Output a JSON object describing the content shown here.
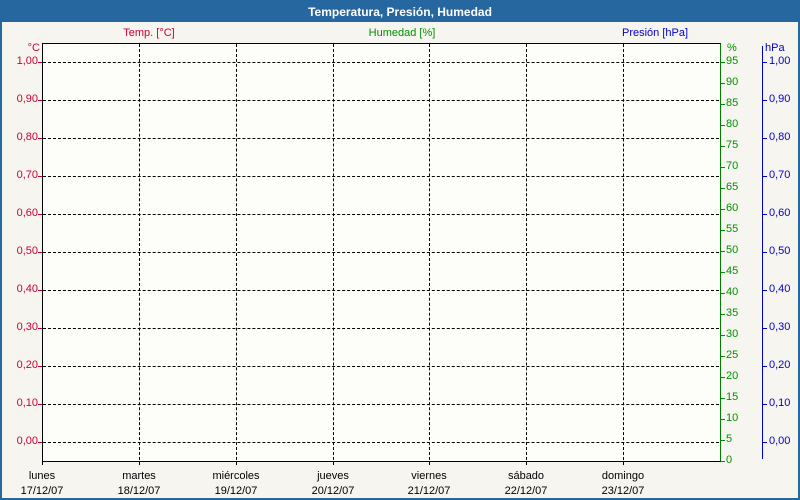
{
  "window": {
    "title": "Temperatura, Presión, Humedad"
  },
  "colors": {
    "header_bg": "#2667A0",
    "outer_border": "#2667A0",
    "temp": "#CC0033",
    "humidity": "#009100",
    "pressure": "#0000CC",
    "grid": "#000000"
  },
  "chart_data": {
    "type": "line",
    "title": "Temperatura, Presión, Humedad",
    "grid": true,
    "legend_position": "top",
    "x_categories": [
      {
        "day": "lunes",
        "date": "17/12/07"
      },
      {
        "day": "martes",
        "date": "18/12/07"
      },
      {
        "day": "miércoles",
        "date": "19/12/07"
      },
      {
        "day": "jueves",
        "date": "20/12/07"
      },
      {
        "day": "viernes",
        "date": "21/12/07"
      },
      {
        "day": "sábado",
        "date": "22/12/07"
      },
      {
        "day": "domingo",
        "date": "23/12/07"
      }
    ],
    "axes": {
      "left": {
        "title": "°C",
        "min": 0.0,
        "max": 1.05,
        "step": 0.1,
        "ticks": [
          "1,00",
          "0,90",
          "0,80",
          "0,70",
          "0,60",
          "0,50",
          "0,40",
          "0,30",
          "0,20",
          "0,10",
          "0,00"
        ]
      },
      "humidity": {
        "title": "%",
        "min": 0,
        "max": 100,
        "step": 5,
        "ticks": [
          "95",
          "90",
          "85",
          "80",
          "75",
          "70",
          "65",
          "60",
          "55",
          "50",
          "45",
          "40",
          "35",
          "30",
          "25",
          "20",
          "15",
          "10",
          "5",
          "0"
        ]
      },
      "pressure": {
        "title": "hPa",
        "min": 0.0,
        "max": 1.05,
        "step": 0.1,
        "ticks": [
          "1,00",
          "0,90",
          "0,80",
          "0,70",
          "0,60",
          "0,50",
          "0,40",
          "0,30",
          "0,20",
          "0,10",
          "0,00"
        ]
      }
    },
    "series": [
      {
        "name": "Temp. [°C]",
        "color": "#CC0033",
        "values": []
      },
      {
        "name": "Humedad [%]",
        "color": "#009100",
        "values": []
      },
      {
        "name": "Presión [hPa]",
        "color": "#0000CC",
        "values": []
      }
    ]
  }
}
